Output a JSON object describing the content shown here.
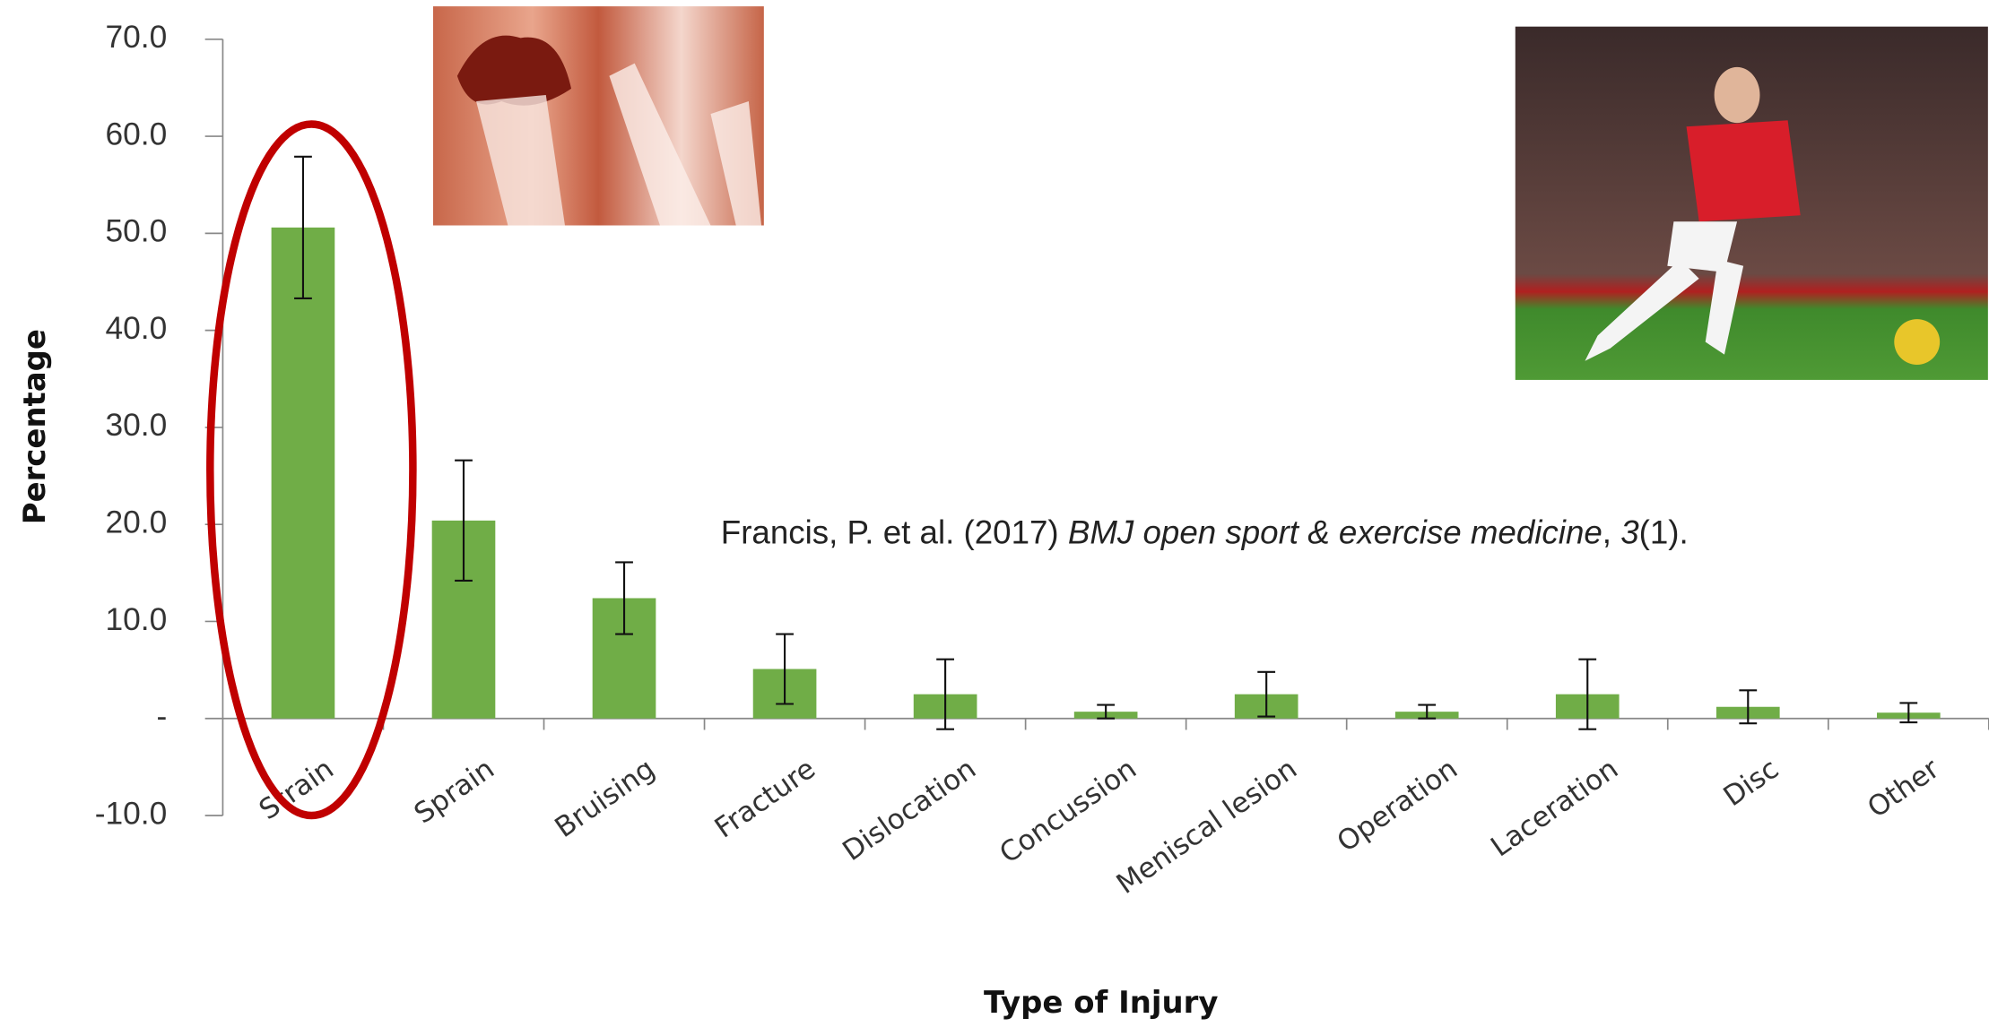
{
  "chart_data": {
    "type": "bar",
    "categories": [
      "Strain",
      "Sprain",
      "Bruising",
      "Fracture",
      "Dislocation",
      "Concussion",
      "Meniscal lesion",
      "Operation",
      "Laceration",
      "Disc",
      "Other"
    ],
    "values": [
      50.6,
      20.4,
      12.4,
      5.1,
      2.5,
      0.7,
      2.5,
      0.7,
      2.5,
      1.2,
      0.6
    ],
    "errors": [
      7.3,
      6.2,
      3.7,
      3.6,
      3.6,
      0.7,
      2.3,
      0.7,
      3.6,
      1.7,
      1.0
    ],
    "color": "#70ad47",
    "ylabel": "Percentage",
    "xlabel": "Type of Injury",
    "ylim": [
      -10,
      70
    ],
    "yticks": [
      {
        "value": -10,
        "label": "-10.0"
      },
      {
        "value": 0,
        "label": "-"
      },
      {
        "value": 10,
        "label": "10.0"
      },
      {
        "value": 20,
        "label": "20.0"
      },
      {
        "value": 30,
        "label": "30.0"
      },
      {
        "value": 40,
        "label": "40.0"
      },
      {
        "value": 50,
        "label": "50.0"
      },
      {
        "value": 60,
        "label": "60.0"
      },
      {
        "value": 70,
        "label": "70.0"
      }
    ],
    "citation": {
      "authors": "Francis, P. et al. (2017)",
      "journal": "BMJ open sport & exercise medicine",
      "volume": "3",
      "issue": "(1)."
    }
  }
}
